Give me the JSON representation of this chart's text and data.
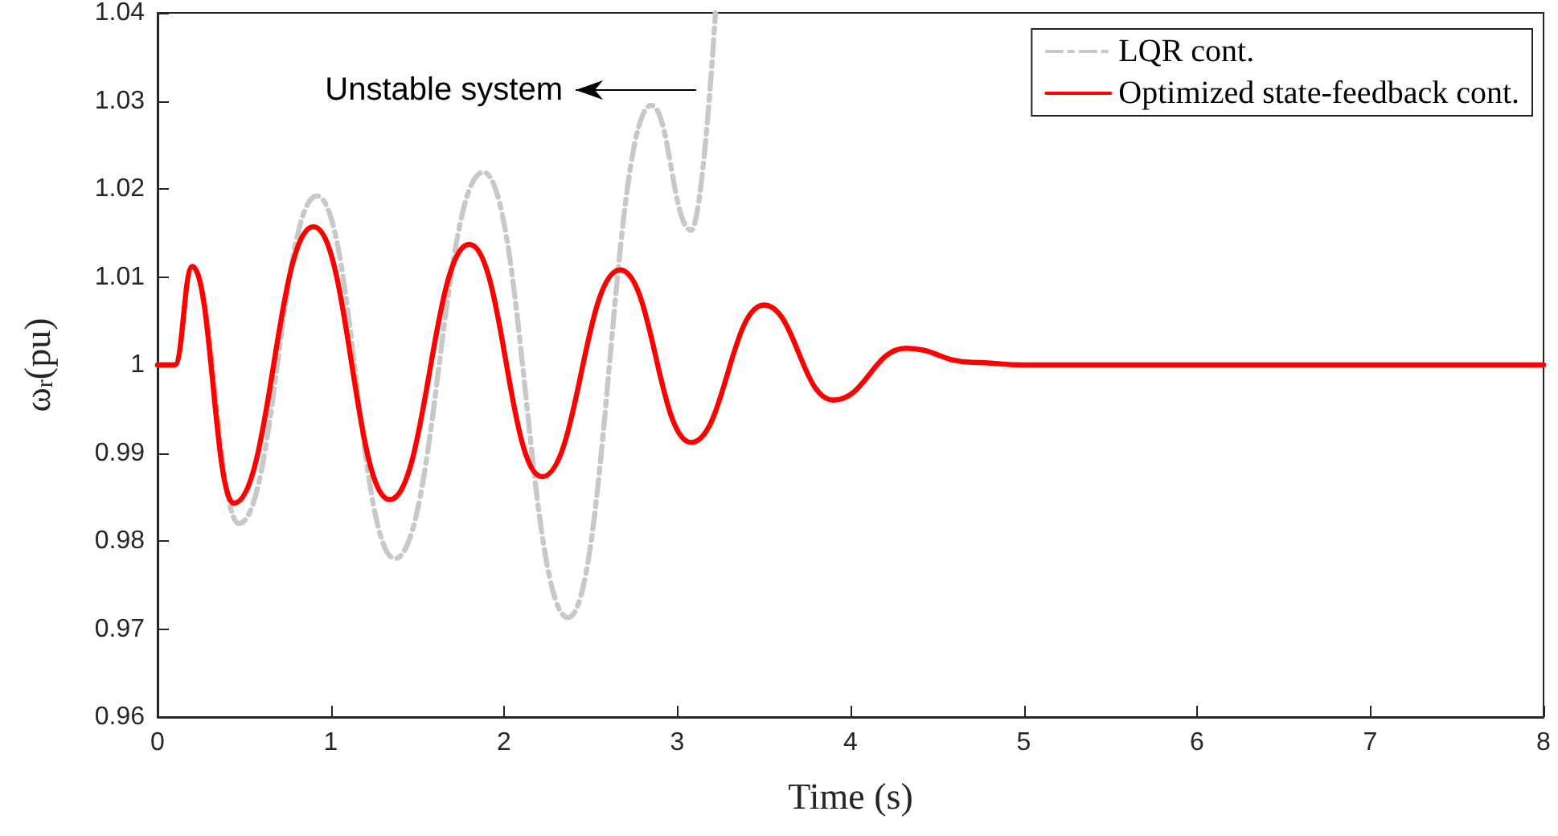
{
  "chart_data": {
    "type": "line",
    "xlabel": "Time (s)",
    "ylabel": "ω$_{r}$(pu)",
    "xlim": [
      0,
      8
    ],
    "xticks": [
      0,
      1,
      2,
      3,
      4,
      5,
      6,
      7,
      8
    ],
    "ylim": [
      0.96,
      1.04
    ],
    "yticks": [
      0.96,
      0.97,
      0.98,
      0.99,
      1,
      1.01,
      1.02,
      1.03,
      1.04
    ],
    "grid": false,
    "legend": "top right",
    "marker": "none",
    "annotations": [
      "Unstable system"
    ],
    "series": [
      {
        "name": "LQR cont.",
        "color": "#c8c8c8",
        "line_style": "dashed",
        "x": [
          0,
          0.1,
          0.2,
          0.47,
          0.92,
          1.37,
          1.88,
          2.37,
          2.85,
          3.08,
          3.22
        ],
        "values": [
          1,
          1,
          1.011,
          0.982,
          1.0192,
          0.978,
          1.0219,
          0.9713,
          1.0295,
          1.0153,
          1.04
        ]
      },
      {
        "name": "Optimized state-feedback cont.",
        "color": "#ff0000",
        "line_style": "solid",
        "x": [
          0,
          0.1,
          0.2,
          0.44,
          0.9,
          1.34,
          1.8,
          2.22,
          2.67,
          3.08,
          3.5,
          3.9,
          4.32,
          4.7,
          5,
          6,
          7,
          8
        ],
        "values": [
          1,
          1,
          1.0112,
          0.9843,
          1.0157,
          0.9847,
          1.0137,
          0.9873,
          1.0108,
          0.9912,
          1.0068,
          0.996,
          1.0019,
          1.0003,
          1.0,
          1.0,
          1.0,
          1.0
        ]
      }
    ]
  }
}
